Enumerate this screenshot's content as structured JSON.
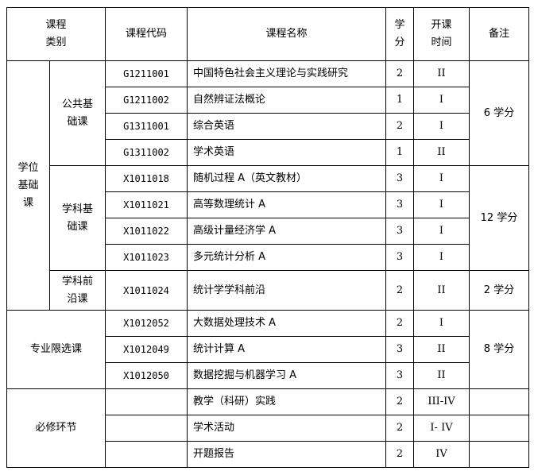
{
  "header": {
    "category": "课程\n类别",
    "code": "课程代码",
    "name": "课程名称",
    "credits": "学\n分",
    "term": "开课\n时间",
    "remark": "备注"
  },
  "groups": {
    "degree": "学位\n基础\n课",
    "public": "公共基\n础课",
    "subject": "学科基\n础课",
    "frontier": "学科前\n沿课",
    "elective": "专业限选课",
    "required": "必修环节"
  },
  "remarks": {
    "public": "6 学分",
    "subject": "12 学分",
    "frontier": "2 学分",
    "elective": "8 学分"
  },
  "rows": [
    {
      "code": "G1211001",
      "name": "中国特色社会主义理论与实践研究",
      "credits": "2",
      "term": "II"
    },
    {
      "code": "G1211002",
      "name": "自然辨证法概论",
      "credits": "1",
      "term": "I"
    },
    {
      "code": "G1311001",
      "name": "综合英语",
      "credits": "2",
      "term": "I"
    },
    {
      "code": "G1311002",
      "name": "学术英语",
      "credits": "1",
      "term": "II"
    },
    {
      "code": "X1011018",
      "name": "随机过程 A（英文教材）",
      "credits": "3",
      "term": "I"
    },
    {
      "code": "X1011021",
      "name": "高等数理统计 A",
      "credits": "3",
      "term": "I"
    },
    {
      "code": "X1011022",
      "name": "高级计量经济学 A",
      "credits": "3",
      "term": "I"
    },
    {
      "code": "X1011023",
      "name": "多元统计分析 A",
      "credits": "3",
      "term": "I"
    },
    {
      "code": "X1011024",
      "name": "统计学学科前沿",
      "credits": "2",
      "term": "II"
    },
    {
      "code": "X1012052",
      "name": "大数据处理技术 A",
      "credits": "2",
      "term": "I"
    },
    {
      "code": "X1012049",
      "name": "统计计算 A",
      "credits": "3",
      "term": "II"
    },
    {
      "code": "X1012050",
      "name": "数据挖掘与机器学习 A",
      "credits": "3",
      "term": "II"
    },
    {
      "code": "",
      "name": "教学（科研）实践",
      "credits": "2",
      "term": "III-IV"
    },
    {
      "code": "",
      "name": "学术活动",
      "credits": "2",
      "term": "I- IV"
    },
    {
      "code": "",
      "name": "开题报告",
      "credits": "2",
      "term": "IV"
    }
  ]
}
